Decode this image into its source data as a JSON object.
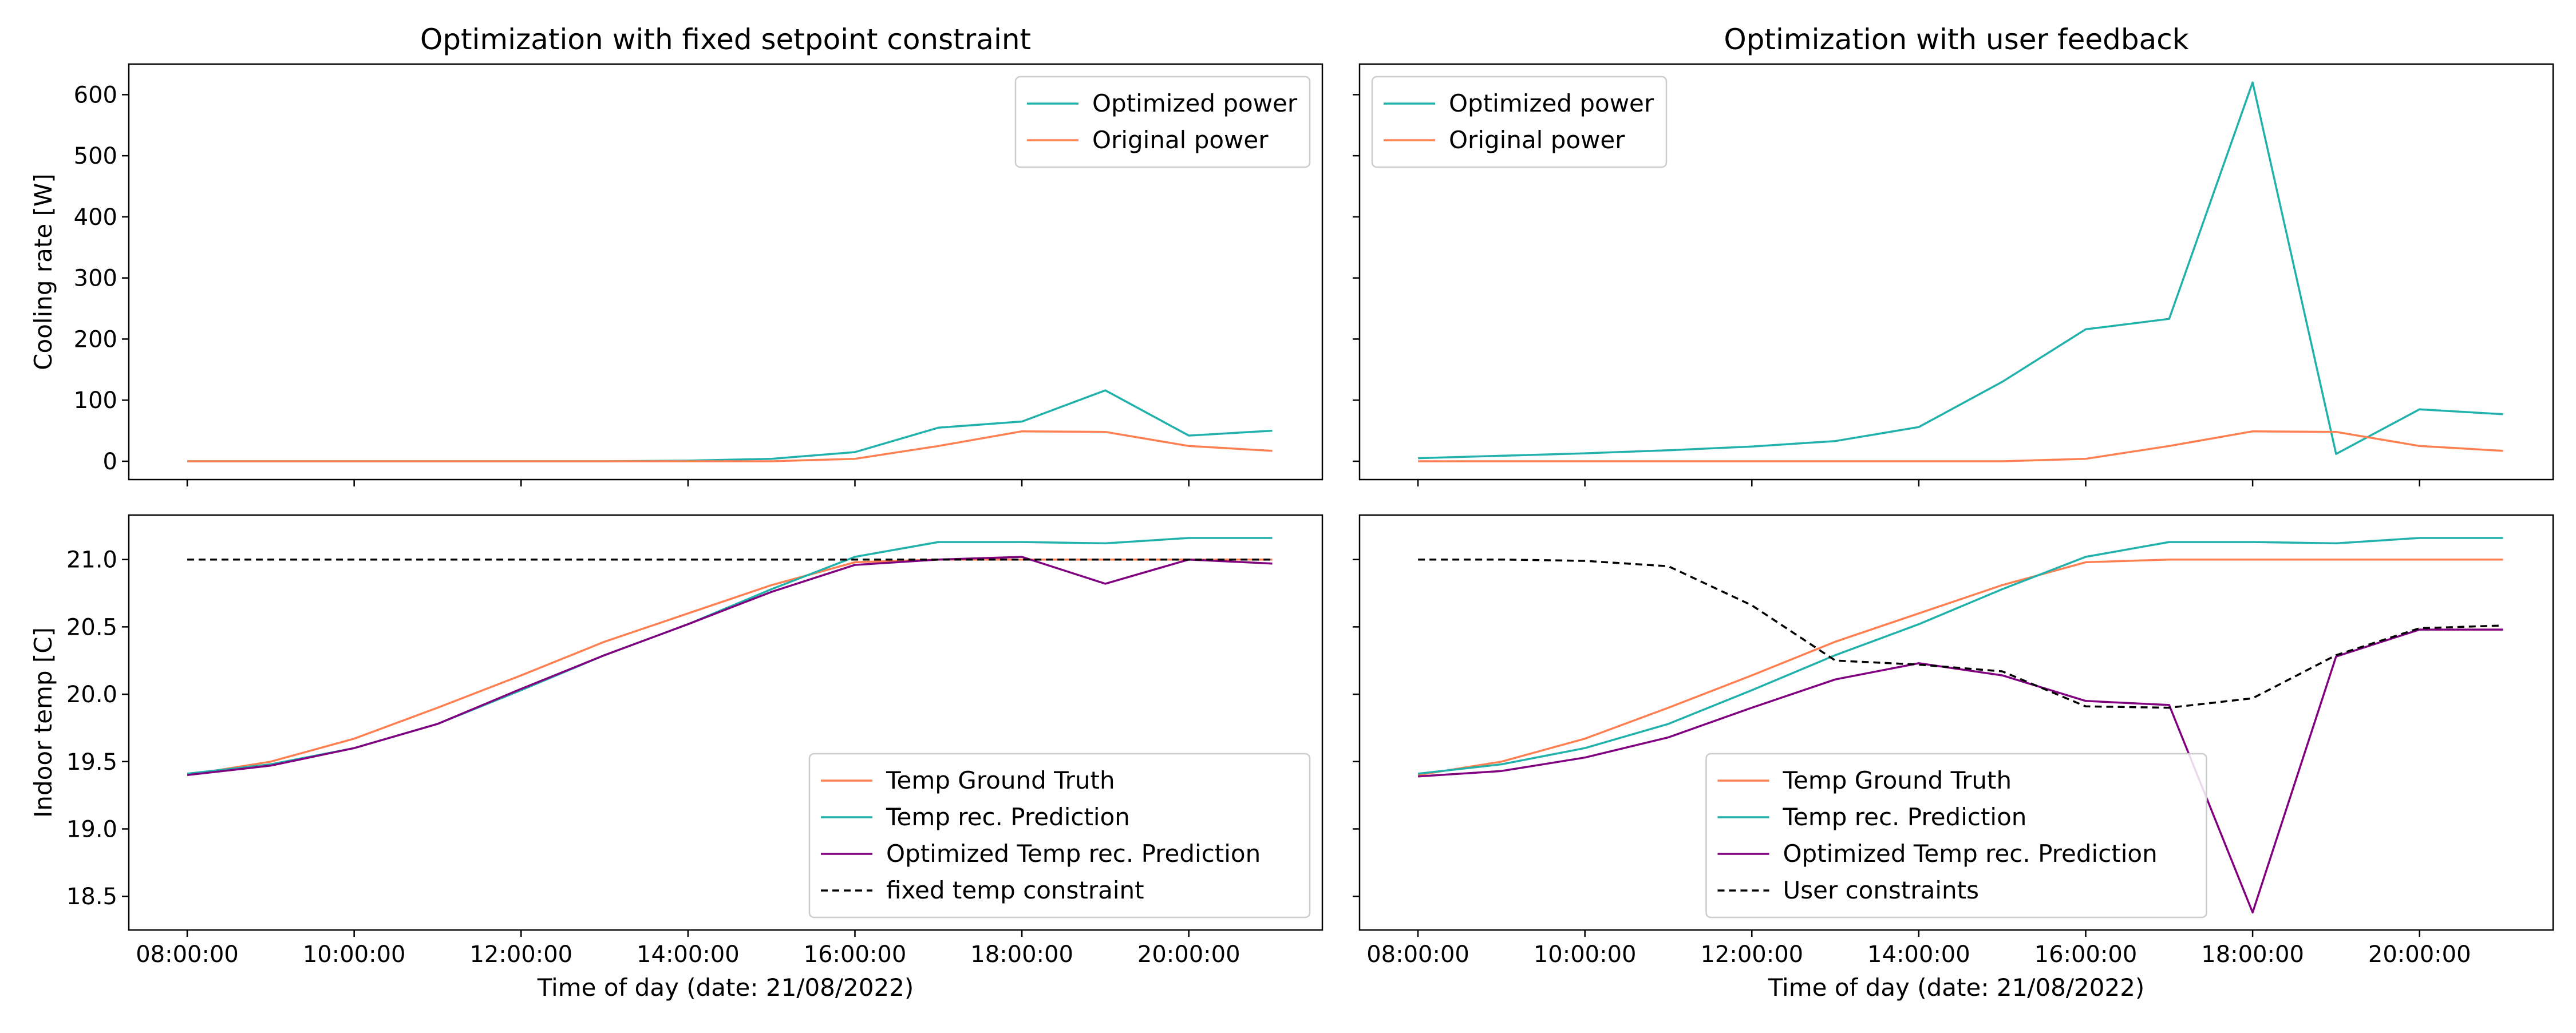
{
  "chart_data": [
    {
      "type": "line",
      "title": "Optimization with fixed setpoint constraint",
      "xlabel": "",
      "ylabel": "Cooling rate [W]",
      "ylim": [
        -30,
        650
      ],
      "yticks": [
        0,
        100,
        200,
        300,
        400,
        500,
        600
      ],
      "xlim": [
        7.3,
        21.6
      ],
      "xticks": [
        8,
        10,
        12,
        14,
        16,
        18,
        20
      ],
      "x_tick_labels_shown": false,
      "legend_position": "upper right",
      "x": [
        8,
        9,
        10,
        11,
        12,
        13,
        14,
        15,
        16,
        17,
        18,
        19,
        20,
        21
      ],
      "series": [
        {
          "name": "Optimized power",
          "color": "#20b2aa",
          "dash": "",
          "values": [
            0,
            0,
            0,
            0,
            0,
            0,
            1,
            4,
            15,
            55,
            65,
            116,
            42,
            50
          ]
        },
        {
          "name": "Original power",
          "color": "#ff7f50",
          "dash": "",
          "values": [
            0,
            0,
            0,
            0,
            0,
            0,
            0,
            0,
            4,
            25,
            49,
            48,
            25,
            17
          ]
        }
      ]
    },
    {
      "type": "line",
      "title": "Optimization with user feedback",
      "xlabel": "",
      "ylabel": "",
      "ylim": [
        -30,
        650
      ],
      "yticks": [
        0,
        100,
        200,
        300,
        400,
        500,
        600
      ],
      "xlim": [
        7.3,
        21.6
      ],
      "xticks": [
        8,
        10,
        12,
        14,
        16,
        18,
        20
      ],
      "x_tick_labels_shown": false,
      "legend_position": "upper left",
      "x": [
        8,
        9,
        10,
        11,
        12,
        13,
        14,
        15,
        16,
        17,
        18,
        19,
        20,
        21
      ],
      "series": [
        {
          "name": "Optimized power",
          "color": "#20b2aa",
          "dash": "",
          "values": [
            5,
            9,
            13,
            18,
            24,
            33,
            56,
            130,
            216,
            233,
            620,
            12,
            85,
            77
          ]
        },
        {
          "name": "Original power",
          "color": "#ff7f50",
          "dash": "",
          "values": [
            0,
            0,
            0,
            0,
            0,
            0,
            0,
            0,
            4,
            25,
            49,
            48,
            25,
            17
          ]
        }
      ]
    },
    {
      "type": "line",
      "title": "",
      "xlabel": "Time of day (date: 21/08/2022)",
      "ylabel": "Indoor temp [C]",
      "ylim": [
        18.25,
        21.33
      ],
      "yticks": [
        18.5,
        19.0,
        19.5,
        20.0,
        20.5,
        21.0
      ],
      "ytick_labels": [
        "18.5",
        "19.0",
        "19.5",
        "20.0",
        "20.5",
        "21.0"
      ],
      "xlim": [
        7.3,
        21.6
      ],
      "xticks": [
        8,
        10,
        12,
        14,
        16,
        18,
        20
      ],
      "xtick_labels": [
        "08:00:00",
        "10:00:00",
        "12:00:00",
        "14:00:00",
        "16:00:00",
        "18:00:00",
        "20:00:00"
      ],
      "x_tick_labels_shown": true,
      "legend_position": "lower right",
      "x": [
        8,
        9,
        10,
        11,
        12,
        13,
        14,
        15,
        16,
        17,
        18,
        19,
        20,
        21
      ],
      "series": [
        {
          "name": "Temp Ground Truth",
          "color": "#ff7f50",
          "dash": "",
          "values": [
            19.4,
            19.5,
            19.67,
            19.9,
            20.14,
            20.39,
            20.6,
            20.81,
            20.98,
            21.0,
            21.0,
            21.0,
            21.0,
            21.0
          ]
        },
        {
          "name": "Temp rec. Prediction",
          "color": "#20b2aa",
          "dash": "",
          "values": [
            19.41,
            19.48,
            19.6,
            19.78,
            20.03,
            20.29,
            20.52,
            20.78,
            21.02,
            21.13,
            21.13,
            21.12,
            21.16,
            21.16
          ]
        },
        {
          "name": "Optimized Temp rec. Prediction",
          "color": "#800080",
          "dash": "",
          "values": [
            19.4,
            19.47,
            19.6,
            19.78,
            20.04,
            20.29,
            20.52,
            20.76,
            20.96,
            21.0,
            21.02,
            20.82,
            21.0,
            20.97
          ]
        },
        {
          "name": "fixed temp constraint",
          "color": "#000000",
          "dash": "12,8",
          "values": [
            21.0,
            21.0,
            21.0,
            21.0,
            21.0,
            21.0,
            21.0,
            21.0,
            21.0,
            21.0,
            21.0,
            21.0,
            21.0,
            21.0
          ]
        }
      ]
    },
    {
      "type": "line",
      "title": "",
      "xlabel": "Time of day (date: 21/08/2022)",
      "ylabel": "",
      "ylim": [
        18.25,
        21.33
      ],
      "yticks": [
        18.5,
        19.0,
        19.5,
        20.0,
        20.5,
        21.0
      ],
      "xlim": [
        7.3,
        21.6
      ],
      "xticks": [
        8,
        10,
        12,
        14,
        16,
        18,
        20
      ],
      "xtick_labels": [
        "08:00:00",
        "10:00:00",
        "12:00:00",
        "14:00:00",
        "16:00:00",
        "18:00:00",
        "20:00:00"
      ],
      "x_tick_labels_shown": true,
      "legend_position": "lower center",
      "x": [
        8,
        9,
        10,
        11,
        12,
        13,
        14,
        15,
        16,
        17,
        18,
        19,
        20,
        21
      ],
      "series": [
        {
          "name": "Temp Ground Truth",
          "color": "#ff7f50",
          "dash": "",
          "values": [
            19.4,
            19.5,
            19.67,
            19.9,
            20.14,
            20.39,
            20.6,
            20.81,
            20.98,
            21.0,
            21.0,
            21.0,
            21.0,
            21.0
          ]
        },
        {
          "name": "Temp rec. Prediction",
          "color": "#20b2aa",
          "dash": "",
          "values": [
            19.41,
            19.48,
            19.6,
            19.78,
            20.03,
            20.29,
            20.52,
            20.78,
            21.02,
            21.13,
            21.13,
            21.12,
            21.16,
            21.16
          ]
        },
        {
          "name": "Optimized Temp rec. Prediction",
          "color": "#800080",
          "dash": "",
          "values": [
            19.39,
            19.43,
            19.53,
            19.68,
            19.9,
            20.11,
            20.23,
            20.14,
            19.95,
            19.92,
            18.38,
            20.28,
            20.48,
            20.48
          ]
        },
        {
          "name": "User constraints",
          "color": "#000000",
          "dash": "12,8",
          "values": [
            21.0,
            21.0,
            20.99,
            20.95,
            20.66,
            20.25,
            20.22,
            20.17,
            19.91,
            19.9,
            19.97,
            20.29,
            20.49,
            20.51
          ]
        }
      ]
    }
  ]
}
